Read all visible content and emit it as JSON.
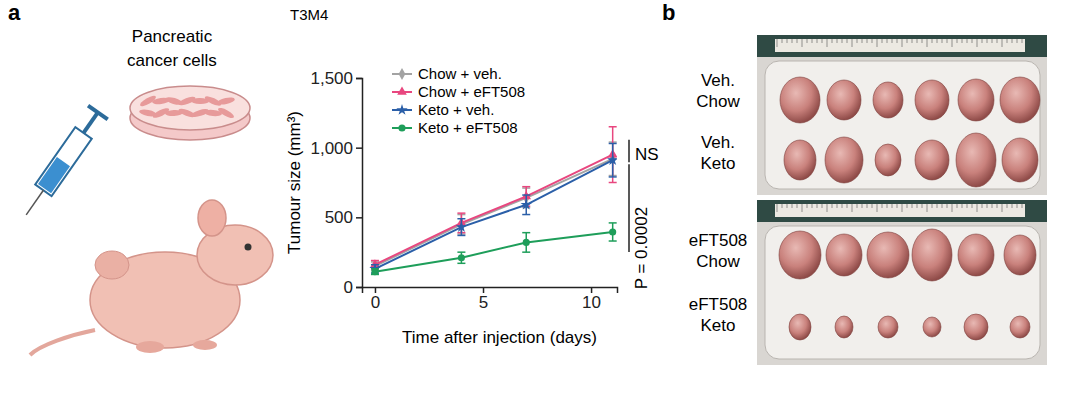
{
  "chart_data": {
    "type": "line",
    "title": "T3M4",
    "x_label": "Time after injection (days)",
    "y_label": "Tumour size (mm³)",
    "x": [
      0,
      4,
      7,
      11
    ],
    "xlim": [
      -0.6,
      11.2
    ],
    "xticks": [
      0,
      5,
      10
    ],
    "ylim": [
      0,
      1500
    ],
    "yticks": [
      0,
      500,
      {
        "value": 1000,
        "label": "1,000"
      },
      {
        "value": 1500,
        "label": "1,500"
      }
    ],
    "grid": false,
    "legend": "top-left",
    "series": [
      {
        "name": "Chow + veh.",
        "color": "#a3a3a3",
        "marker": "diamond",
        "values": [
          150,
          450,
          640,
          920
        ],
        "errors": [
          30,
          70,
          70,
          120
        ]
      },
      {
        "name": "Chow + eFT508",
        "color": "#e8477f",
        "marker": "triangle",
        "values": [
          160,
          460,
          650,
          950
        ],
        "errors": [
          30,
          70,
          70,
          200
        ]
      },
      {
        "name": "Keto + veh.",
        "color": "#2b5fa8",
        "marker": "star",
        "values": [
          130,
          430,
          590,
          910
        ],
        "errors": [
          30,
          60,
          70,
          120
        ]
      },
      {
        "name": "Keto + eFT508",
        "color": "#1e9e5a",
        "marker": "circle",
        "values": [
          110,
          210,
          320,
          395
        ],
        "errors": [
          20,
          40,
          70,
          65
        ]
      }
    ],
    "annotations": [
      {
        "text": "NS"
      },
      {
        "text": "P = 0.0002"
      }
    ]
  },
  "figure": {
    "panel_labels": [
      "a",
      "b"
    ],
    "illustration": {
      "label": [
        "Pancreatic",
        "cancer cells"
      ]
    },
    "photo": {
      "labels": [
        [
          "Veh.",
          "Chow"
        ],
        [
          "Veh.",
          "Keto"
        ],
        [
          "eFT508",
          "Chow"
        ],
        [
          "eFT508",
          "Keto"
        ]
      ]
    }
  }
}
